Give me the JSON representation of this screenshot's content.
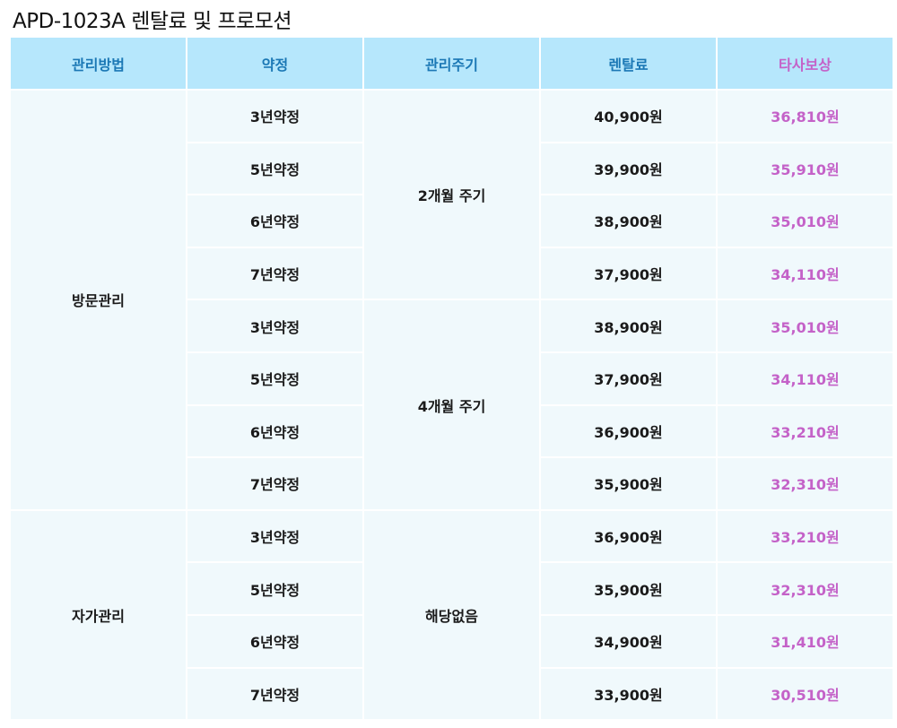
{
  "title": "APD-1023A 렌탈료 및 프로모션",
  "headers": [
    "관리방법",
    "약정",
    "관리주기",
    "렌탈료",
    "타사보상"
  ],
  "colors": {
    "header_bg": "#b6e7fc",
    "header_text": "#1b78b5",
    "compensation_text": "#c462c8",
    "cell_bg": "#f0f9fc"
  },
  "groups": [
    {
      "method": "방문관리",
      "cycles": [
        {
          "cycle": "2개월 주기",
          "rows": [
            {
              "term": "3년약정",
              "fee": "40,900원",
              "comp": "36,810원"
            },
            {
              "term": "5년약정",
              "fee": "39,900원",
              "comp": "35,910원"
            },
            {
              "term": "6년약정",
              "fee": "38,900원",
              "comp": "35,010원"
            },
            {
              "term": "7년약정",
              "fee": "37,900원",
              "comp": "34,110원"
            }
          ]
        },
        {
          "cycle": "4개월 주기",
          "rows": [
            {
              "term": "3년약정",
              "fee": "38,900원",
              "comp": "35,010원"
            },
            {
              "term": "5년약정",
              "fee": "37,900원",
              "comp": "34,110원"
            },
            {
              "term": "6년약정",
              "fee": "36,900원",
              "comp": "33,210원"
            },
            {
              "term": "7년약정",
              "fee": "35,900원",
              "comp": "32,310원"
            }
          ]
        }
      ]
    },
    {
      "method": "자가관리",
      "cycles": [
        {
          "cycle": "해당없음",
          "rows": [
            {
              "term": "3년약정",
              "fee": "36,900원",
              "comp": "33,210원"
            },
            {
              "term": "5년약정",
              "fee": "35,900원",
              "comp": "32,310원"
            },
            {
              "term": "6년약정",
              "fee": "34,900원",
              "comp": "31,410원"
            },
            {
              "term": "7년약정",
              "fee": "33,900원",
              "comp": "30,510원"
            }
          ]
        }
      ]
    }
  ]
}
